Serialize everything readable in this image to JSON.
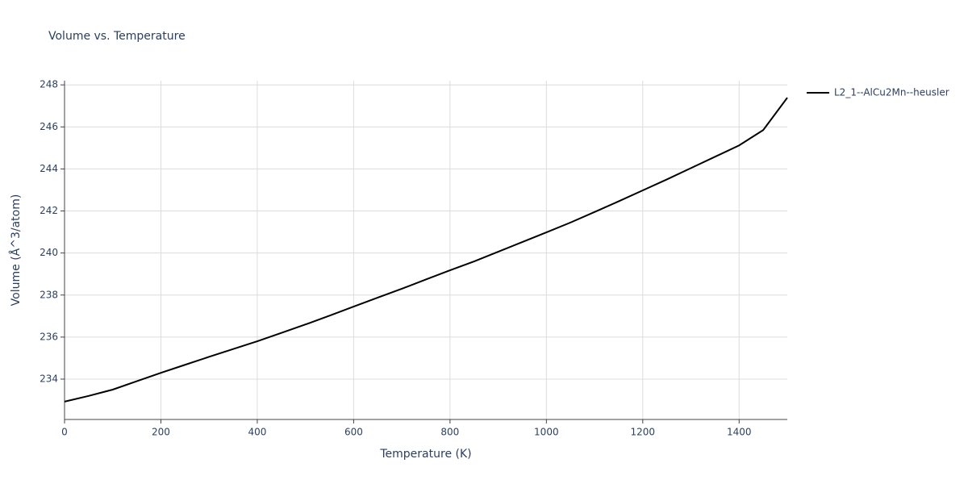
{
  "chart_data": {
    "type": "line",
    "title": "Volume vs. Temperature",
    "x_label": "Temperature (K)",
    "y_label": "Volume (Å^3/atom)",
    "x": [
      0,
      50,
      100,
      150,
      200,
      250,
      300,
      350,
      400,
      450,
      500,
      550,
      600,
      650,
      700,
      750,
      800,
      850,
      900,
      950,
      1000,
      1050,
      1100,
      1150,
      1200,
      1250,
      1300,
      1350,
      1400,
      1450,
      1500
    ],
    "series": [
      {
        "name": "L2_1--AlCu2Mn--heusler",
        "color": "#000000",
        "values": [
          232.93,
          233.2,
          233.5,
          233.9,
          234.3,
          234.68,
          235.06,
          235.43,
          235.8,
          236.2,
          236.6,
          237.02,
          237.45,
          237.88,
          238.3,
          238.74,
          239.18,
          239.6,
          240.06,
          240.52,
          240.98,
          241.45,
          241.95,
          242.46,
          242.98,
          243.5,
          244.04,
          244.58,
          245.12,
          245.85,
          247.39
        ]
      }
    ],
    "xlim": [
      0,
      1500
    ],
    "xticks": [
      0,
      200,
      400,
      600,
      800,
      1000,
      1200,
      1400
    ],
    "ylim": [
      232.08,
      248.2
    ],
    "yticks": [
      234,
      236,
      238,
      240,
      242,
      244,
      246,
      248
    ],
    "grid": true,
    "legend_position": "right"
  }
}
